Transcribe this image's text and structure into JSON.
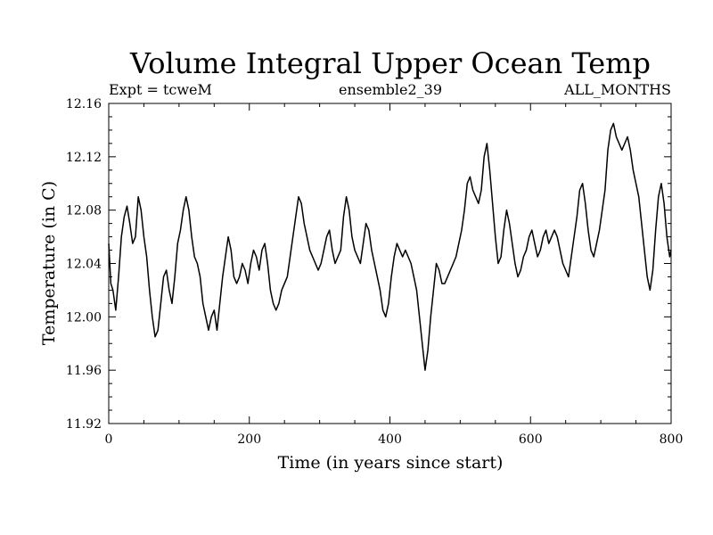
{
  "chart_data": {
    "type": "line",
    "title": "Volume Integral Upper Ocean Temp",
    "subtitle_left": "Expt = tcweM",
    "subtitle_center": "ensemble2_39",
    "subtitle_right": "ALL_MONTHS",
    "xlabel": "Time (in years since start)",
    "ylabel": "Temperature (in C)",
    "xlim": [
      0,
      800
    ],
    "ylim": [
      11.92,
      12.16
    ],
    "xticks": [
      0,
      200,
      400,
      600,
      800
    ],
    "xtick_labels": [
      "0",
      "200",
      "400",
      "600",
      "800"
    ],
    "yticks": [
      11.92,
      11.96,
      12.0,
      12.04,
      12.08,
      12.12,
      12.16
    ],
    "ytick_labels": [
      "11.92",
      "11.96",
      "12.00",
      "12.04",
      "12.08",
      "12.12",
      "12.16"
    ],
    "grid": false,
    "series": [
      {
        "name": "Volume Integral Upper Ocean Temp",
        "color": "#000000",
        "points": [
          [
            0,
            12.055
          ],
          [
            3,
            12.025
          ],
          [
            6,
            12.02
          ],
          [
            10,
            12.005
          ],
          [
            14,
            12.03
          ],
          [
            18,
            12.06
          ],
          [
            22,
            12.075
          ],
          [
            26,
            12.083
          ],
          [
            30,
            12.07
          ],
          [
            34,
            12.055
          ],
          [
            38,
            12.06
          ],
          [
            42,
            12.09
          ],
          [
            46,
            12.08
          ],
          [
            50,
            12.06
          ],
          [
            54,
            12.045
          ],
          [
            58,
            12.02
          ],
          [
            62,
            12.0
          ],
          [
            66,
            11.985
          ],
          [
            70,
            11.99
          ],
          [
            74,
            12.01
          ],
          [
            78,
            12.03
          ],
          [
            82,
            12.035
          ],
          [
            86,
            12.02
          ],
          [
            90,
            12.01
          ],
          [
            94,
            12.03
          ],
          [
            98,
            12.055
          ],
          [
            102,
            12.065
          ],
          [
            106,
            12.08
          ],
          [
            110,
            12.09
          ],
          [
            114,
            12.08
          ],
          [
            118,
            12.06
          ],
          [
            122,
            12.045
          ],
          [
            126,
            12.04
          ],
          [
            130,
            12.03
          ],
          [
            134,
            12.01
          ],
          [
            138,
            12.0
          ],
          [
            142,
            11.99
          ],
          [
            146,
            12.0
          ],
          [
            150,
            12.005
          ],
          [
            154,
            11.99
          ],
          [
            158,
            12.01
          ],
          [
            162,
            12.03
          ],
          [
            166,
            12.045
          ],
          [
            170,
            12.06
          ],
          [
            174,
            12.05
          ],
          [
            178,
            12.03
          ],
          [
            182,
            12.025
          ],
          [
            186,
            12.03
          ],
          [
            190,
            12.04
          ],
          [
            194,
            12.035
          ],
          [
            198,
            12.025
          ],
          [
            202,
            12.04
          ],
          [
            206,
            12.05
          ],
          [
            210,
            12.045
          ],
          [
            214,
            12.035
          ],
          [
            218,
            12.05
          ],
          [
            222,
            12.055
          ],
          [
            226,
            12.04
          ],
          [
            230,
            12.02
          ],
          [
            234,
            12.01
          ],
          [
            238,
            12.005
          ],
          [
            242,
            12.01
          ],
          [
            246,
            12.02
          ],
          [
            250,
            12.025
          ],
          [
            254,
            12.03
          ],
          [
            258,
            12.045
          ],
          [
            262,
            12.06
          ],
          [
            266,
            12.075
          ],
          [
            270,
            12.09
          ],
          [
            274,
            12.085
          ],
          [
            278,
            12.07
          ],
          [
            282,
            12.06
          ],
          [
            286,
            12.05
          ],
          [
            290,
            12.045
          ],
          [
            294,
            12.04
          ],
          [
            298,
            12.035
          ],
          [
            302,
            12.04
          ],
          [
            306,
            12.05
          ],
          [
            310,
            12.06
          ],
          [
            314,
            12.065
          ],
          [
            318,
            12.05
          ],
          [
            322,
            12.04
          ],
          [
            326,
            12.045
          ],
          [
            330,
            12.05
          ],
          [
            334,
            12.075
          ],
          [
            338,
            12.09
          ],
          [
            342,
            12.08
          ],
          [
            346,
            12.06
          ],
          [
            350,
            12.05
          ],
          [
            354,
            12.045
          ],
          [
            358,
            12.04
          ],
          [
            362,
            12.055
          ],
          [
            366,
            12.07
          ],
          [
            370,
            12.065
          ],
          [
            374,
            12.05
          ],
          [
            378,
            12.04
          ],
          [
            382,
            12.03
          ],
          [
            386,
            12.02
          ],
          [
            390,
            12.005
          ],
          [
            394,
            12.0
          ],
          [
            398,
            12.01
          ],
          [
            402,
            12.03
          ],
          [
            406,
            12.045
          ],
          [
            410,
            12.055
          ],
          [
            414,
            12.05
          ],
          [
            418,
            12.045
          ],
          [
            422,
            12.05
          ],
          [
            426,
            12.045
          ],
          [
            430,
            12.04
          ],
          [
            434,
            12.03
          ],
          [
            438,
            12.02
          ],
          [
            442,
            12.0
          ],
          [
            446,
            11.98
          ],
          [
            450,
            11.96
          ],
          [
            454,
            11.975
          ],
          [
            458,
            12.0
          ],
          [
            462,
            12.02
          ],
          [
            466,
            12.04
          ],
          [
            470,
            12.035
          ],
          [
            474,
            12.025
          ],
          [
            478,
            12.025
          ],
          [
            482,
            12.03
          ],
          [
            486,
            12.035
          ],
          [
            490,
            12.04
          ],
          [
            494,
            12.045
          ],
          [
            498,
            12.055
          ],
          [
            502,
            12.065
          ],
          [
            506,
            12.08
          ],
          [
            510,
            12.1
          ],
          [
            514,
            12.105
          ],
          [
            518,
            12.095
          ],
          [
            522,
            12.09
          ],
          [
            526,
            12.085
          ],
          [
            530,
            12.095
          ],
          [
            534,
            12.12
          ],
          [
            538,
            12.13
          ],
          [
            542,
            12.11
          ],
          [
            546,
            12.085
          ],
          [
            550,
            12.06
          ],
          [
            554,
            12.04
          ],
          [
            558,
            12.045
          ],
          [
            562,
            12.065
          ],
          [
            566,
            12.08
          ],
          [
            570,
            12.07
          ],
          [
            574,
            12.055
          ],
          [
            578,
            12.04
          ],
          [
            582,
            12.03
          ],
          [
            586,
            12.035
          ],
          [
            590,
            12.045
          ],
          [
            594,
            12.05
          ],
          [
            598,
            12.06
          ],
          [
            602,
            12.065
          ],
          [
            606,
            12.055
          ],
          [
            610,
            12.045
          ],
          [
            614,
            12.05
          ],
          [
            618,
            12.06
          ],
          [
            622,
            12.065
          ],
          [
            626,
            12.055
          ],
          [
            630,
            12.06
          ],
          [
            634,
            12.065
          ],
          [
            638,
            12.06
          ],
          [
            642,
            12.05
          ],
          [
            646,
            12.04
          ],
          [
            650,
            12.035
          ],
          [
            654,
            12.03
          ],
          [
            658,
            12.045
          ],
          [
            662,
            12.06
          ],
          [
            666,
            12.075
          ],
          [
            670,
            12.095
          ],
          [
            674,
            12.1
          ],
          [
            678,
            12.085
          ],
          [
            682,
            12.065
          ],
          [
            686,
            12.05
          ],
          [
            690,
            12.045
          ],
          [
            694,
            12.055
          ],
          [
            698,
            12.065
          ],
          [
            702,
            12.08
          ],
          [
            706,
            12.095
          ],
          [
            710,
            12.125
          ],
          [
            714,
            12.14
          ],
          [
            718,
            12.145
          ],
          [
            722,
            12.135
          ],
          [
            726,
            12.13
          ],
          [
            730,
            12.125
          ],
          [
            734,
            12.13
          ],
          [
            738,
            12.135
          ],
          [
            742,
            12.125
          ],
          [
            746,
            12.11
          ],
          [
            750,
            12.1
          ],
          [
            754,
            12.09
          ],
          [
            758,
            12.07
          ],
          [
            762,
            12.05
          ],
          [
            766,
            12.03
          ],
          [
            770,
            12.02
          ],
          [
            774,
            12.035
          ],
          [
            778,
            12.065
          ],
          [
            782,
            12.09
          ],
          [
            786,
            12.1
          ],
          [
            790,
            12.085
          ],
          [
            794,
            12.06
          ],
          [
            798,
            12.045
          ],
          [
            800,
            12.05
          ]
        ]
      }
    ]
  }
}
